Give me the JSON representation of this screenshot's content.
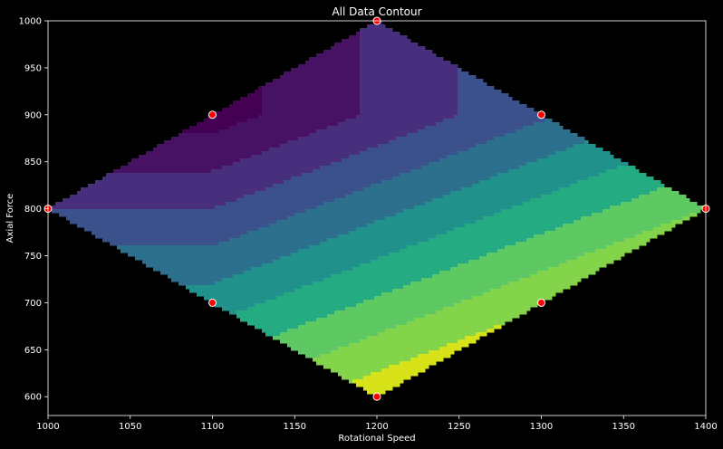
{
  "chart_data": {
    "type": "contour",
    "title": "All Data Contour",
    "xlabel": "Rotational Speed",
    "ylabel": "Axial Force",
    "xlim": [
      1000,
      1400
    ],
    "ylim": [
      580,
      1000
    ],
    "x_ticks": [
      1000,
      1050,
      1100,
      1150,
      1200,
      1250,
      1300,
      1350,
      1400
    ],
    "y_ticks": [
      600,
      650,
      700,
      750,
      800,
      850,
      900,
      950,
      1000
    ],
    "points": [
      {
        "x": 1000,
        "y": 800
      },
      {
        "x": 1100,
        "y": 900
      },
      {
        "x": 1100,
        "y": 700
      },
      {
        "x": 1200,
        "y": 1000
      },
      {
        "x": 1200,
        "y": 600
      },
      {
        "x": 1300,
        "y": 900
      },
      {
        "x": 1300,
        "y": 700
      },
      {
        "x": 1400,
        "y": 800
      }
    ],
    "colormap": [
      "#440154",
      "#471164",
      "#472f7d",
      "#3b518b",
      "#2d708e",
      "#21918c",
      "#25ab82",
      "#5ec962",
      "#84d44b",
      "#d8e219"
    ],
    "point_color": "#ff0000",
    "point_edge_color": "#ffffff",
    "background": "#000000",
    "grid": false
  }
}
